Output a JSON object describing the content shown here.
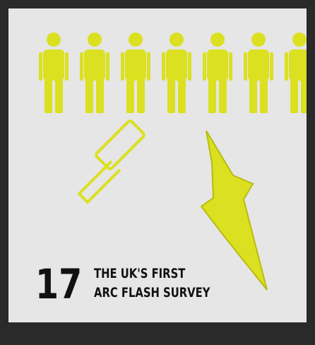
{
  "number": "17",
  "title_lines": [
    "THE UK'S FIRST",
    "ARC FLASH SURVEY"
  ]
}
